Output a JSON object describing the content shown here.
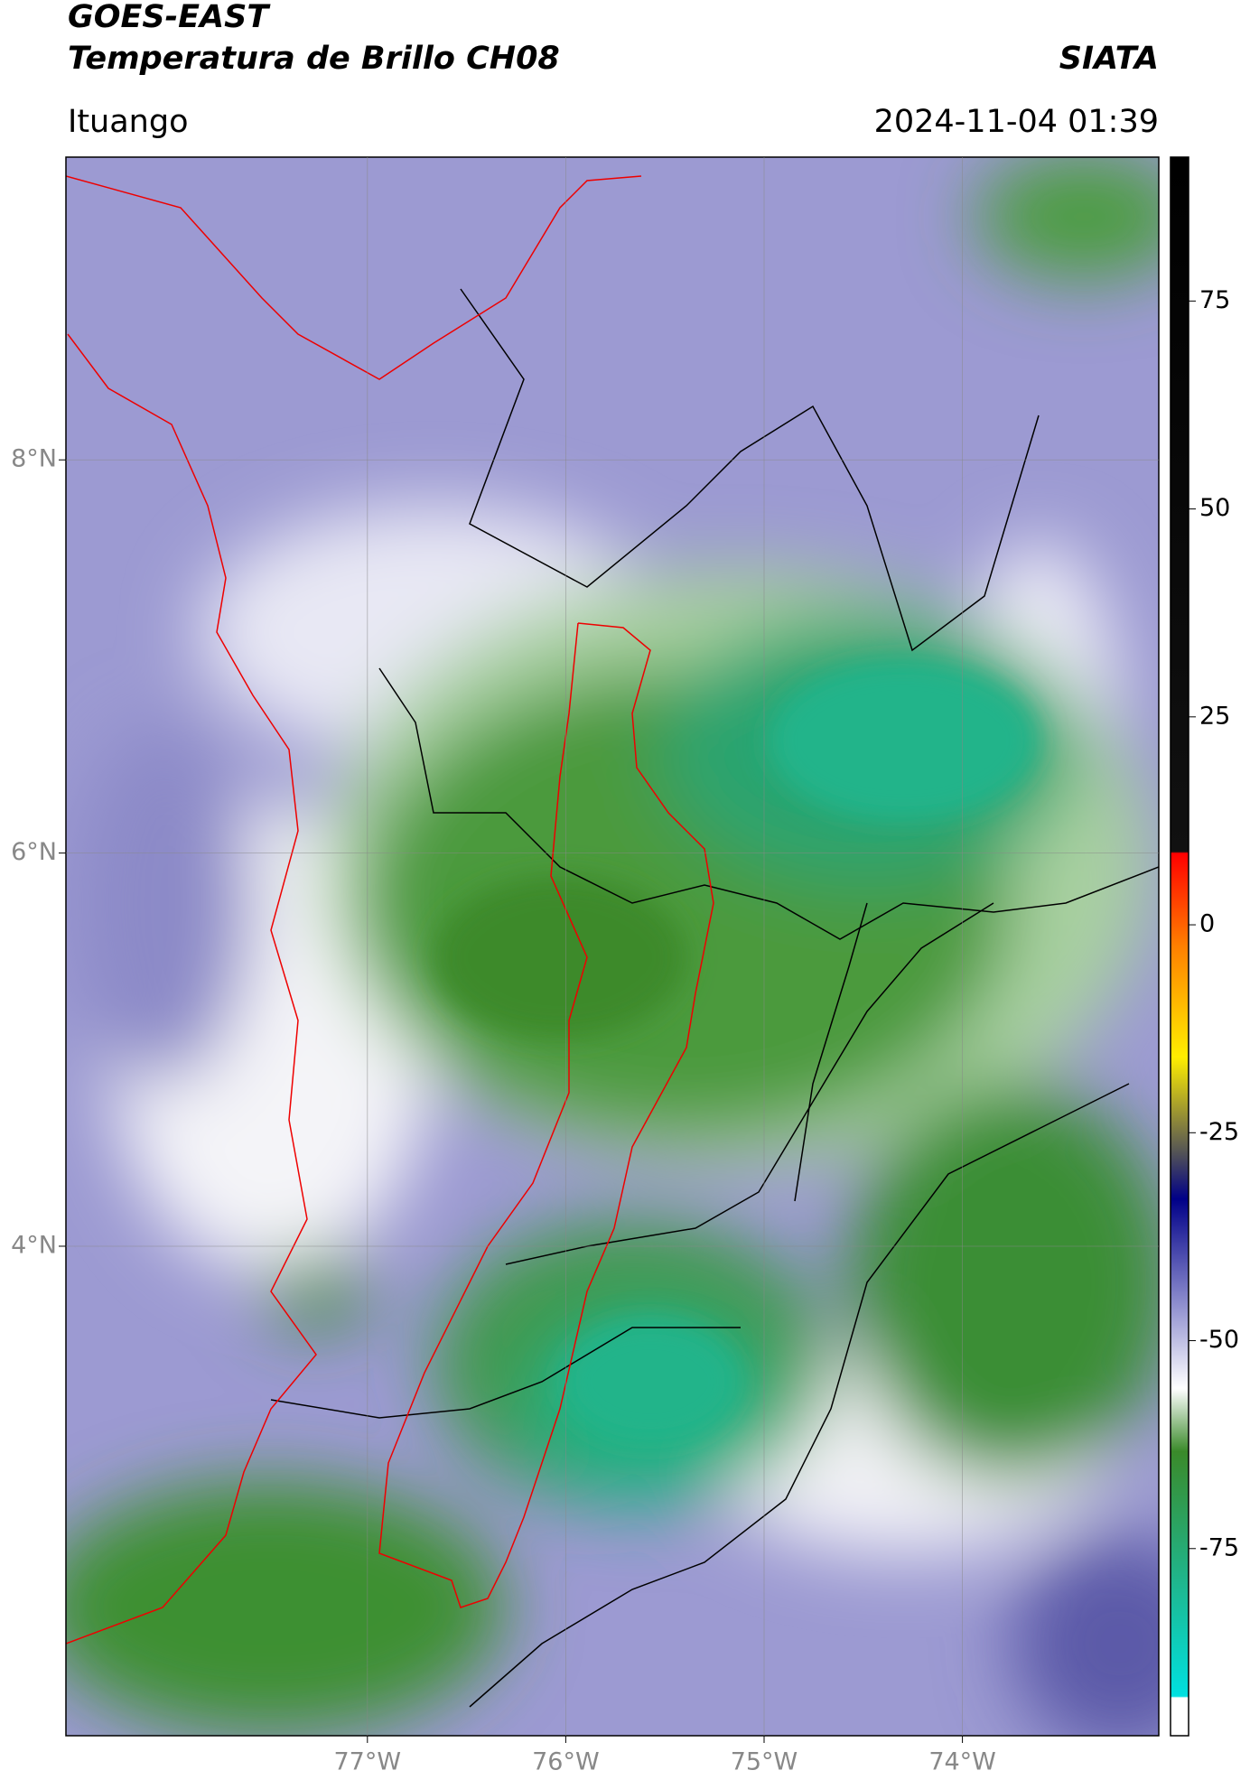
{
  "header": {
    "title": "GOES-EAST",
    "subtitle": "Temperatura de Brillo CH08",
    "brand": "SIATA",
    "location": "Ituango",
    "datetime": "2024-11-04 01:39"
  },
  "map": {
    "xlim": [
      -78.52,
      -73.01
    ],
    "ylim": [
      1.51,
      9.54
    ],
    "xticks": [
      {
        "value": -77,
        "label": "77°W"
      },
      {
        "value": -76,
        "label": "76°W"
      },
      {
        "value": -75,
        "label": "75°W"
      },
      {
        "value": -74,
        "label": "74°W"
      }
    ],
    "yticks": [
      {
        "value": 8,
        "label": "8°N"
      },
      {
        "value": 6,
        "label": "6°N"
      },
      {
        "value": 4,
        "label": "4°N"
      }
    ],
    "grid": true
  },
  "colorbar": {
    "lim": [
      -97.5,
      92.3
    ],
    "ticks": [
      75,
      50,
      25,
      0,
      -25,
      -50,
      -75
    ]
  }
}
